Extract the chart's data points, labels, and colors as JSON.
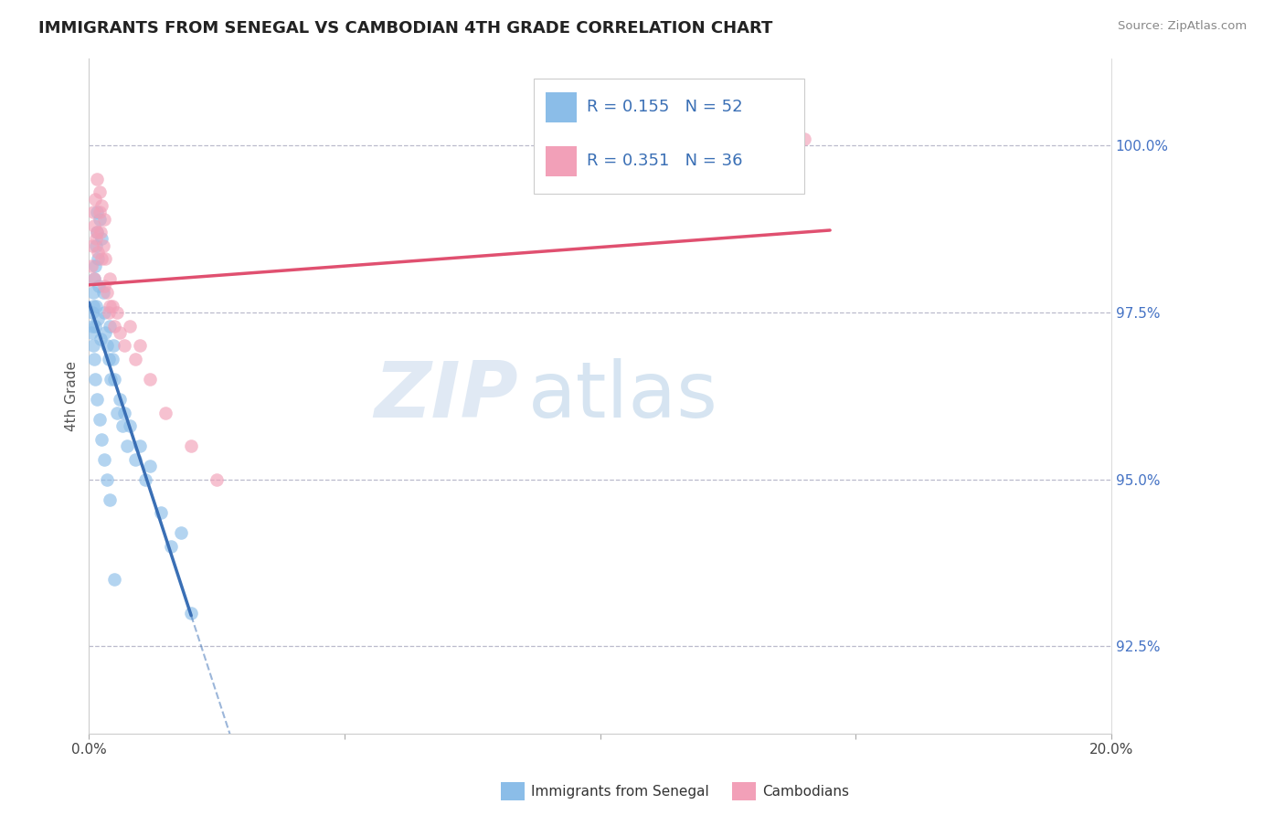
{
  "title": "IMMIGRANTS FROM SENEGAL VS CAMBODIAN 4TH GRADE CORRELATION CHART",
  "source": "Source: ZipAtlas.com",
  "ylabel": "4th Grade",
  "y_ticks": [
    92.5,
    95.0,
    97.5,
    100.0
  ],
  "y_tick_labels": [
    "92.5%",
    "95.0%",
    "97.5%",
    "100.0%"
  ],
  "xlim": [
    0.0,
    20.0
  ],
  "ylim": [
    91.2,
    101.3
  ],
  "R_blue": 0.155,
  "N_blue": 52,
  "R_pink": 0.351,
  "N_pink": 36,
  "blue_color": "#8BBDE8",
  "pink_color": "#F2A0B8",
  "blue_line_color": "#3A6FB5",
  "pink_line_color": "#E05070",
  "watermark_zip": "ZIP",
  "watermark_atlas": "atlas",
  "legend_label_blue": "Immigrants from Senegal",
  "legend_label_pink": "Cambodians",
  "blue_x": [
    0.05,
    0.07,
    0.08,
    0.09,
    0.1,
    0.11,
    0.12,
    0.13,
    0.14,
    0.15,
    0.16,
    0.17,
    0.18,
    0.19,
    0.2,
    0.22,
    0.25,
    0.28,
    0.3,
    0.32,
    0.35,
    0.38,
    0.4,
    0.42,
    0.45,
    0.48,
    0.5,
    0.55,
    0.6,
    0.65,
    0.7,
    0.75,
    0.8,
    0.9,
    1.0,
    1.1,
    1.2,
    1.4,
    1.6,
    1.8,
    0.06,
    0.08,
    0.1,
    0.12,
    0.15,
    0.2,
    0.25,
    0.3,
    0.35,
    0.4,
    0.5,
    2.0
  ],
  "blue_y": [
    97.2,
    97.5,
    97.8,
    97.0,
    98.0,
    97.3,
    98.2,
    97.6,
    98.5,
    99.0,
    98.7,
    97.4,
    98.3,
    97.9,
    98.9,
    97.1,
    98.6,
    97.8,
    97.5,
    97.2,
    97.0,
    96.8,
    97.3,
    96.5,
    96.8,
    97.0,
    96.5,
    96.0,
    96.2,
    95.8,
    96.0,
    95.5,
    95.8,
    95.3,
    95.5,
    95.0,
    95.2,
    94.5,
    94.0,
    94.2,
    97.3,
    97.6,
    96.8,
    96.5,
    96.2,
    95.9,
    95.6,
    95.3,
    95.0,
    94.7,
    93.5,
    93.0
  ],
  "pink_x": [
    0.05,
    0.07,
    0.08,
    0.1,
    0.12,
    0.14,
    0.16,
    0.18,
    0.2,
    0.22,
    0.25,
    0.28,
    0.3,
    0.32,
    0.35,
    0.38,
    0.4,
    0.45,
    0.5,
    0.55,
    0.6,
    0.7,
    0.8,
    0.9,
    1.0,
    1.2,
    1.5,
    2.0,
    2.5,
    0.1,
    0.15,
    0.2,
    0.25,
    0.3,
    0.4,
    14.0
  ],
  "pink_y": [
    98.2,
    98.5,
    99.0,
    98.8,
    99.2,
    98.6,
    99.5,
    98.4,
    99.3,
    98.7,
    99.1,
    98.5,
    98.9,
    98.3,
    97.8,
    97.5,
    98.0,
    97.6,
    97.3,
    97.5,
    97.2,
    97.0,
    97.3,
    96.8,
    97.0,
    96.5,
    96.0,
    95.5,
    95.0,
    98.0,
    98.7,
    99.0,
    98.3,
    97.9,
    97.6,
    100.1
  ]
}
